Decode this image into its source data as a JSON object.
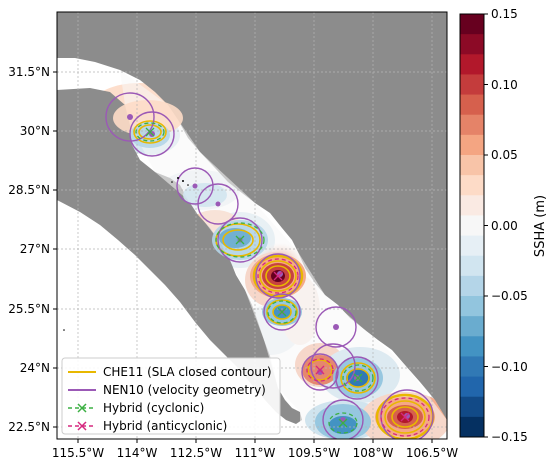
{
  "map": {
    "lat_labels": [
      "31.5°N",
      "30°N",
      "28.5°N",
      "27°N",
      "25.5°N",
      "24°N",
      "22.5°N"
    ],
    "lon_labels": [
      "115.5°W",
      "114°W",
      "112.5°W",
      "111°W",
      "109.5°W",
      "108°W",
      "106.5°W"
    ],
    "land_color": "#8c8c8c",
    "ocean_color": "#ffffff",
    "grid_color": "#b5b5b5"
  },
  "legend": {
    "items": [
      {
        "label": "CHE11 (SLA closed contour)",
        "color": "#e8b800",
        "style": "solid-line"
      },
      {
        "label": "NEN10 (velocity geometry)",
        "color": "#9b59b6",
        "style": "solid-line"
      },
      {
        "label": "Hybrid (cyclonic)",
        "color": "#3cb043",
        "style": "dashed-x"
      },
      {
        "label": "Hybrid (anticyclonic)",
        "color": "#d6287f",
        "style": "dashed-x"
      }
    ]
  },
  "colorbar": {
    "label": "SSHA (m)",
    "tick_labels": [
      "0.15",
      "0.10",
      "0.05",
      "0.00",
      "−0.05",
      "−0.10",
      "−0.15"
    ],
    "range": [
      -0.15,
      0.15
    ],
    "colors_top_to_bottom": [
      "#67001f",
      "#8c0a26",
      "#b2182b",
      "#c43c3c",
      "#d6604d",
      "#e58368",
      "#f4a582",
      "#f8c4a8",
      "#fddbc7",
      "#faeae3",
      "#f7f7f7",
      "#e6eff5",
      "#d1e5f0",
      "#b4d5e8",
      "#92c5de",
      "#6aaccf",
      "#4393c3",
      "#3179b5",
      "#2166ac",
      "#124a87",
      "#053061"
    ]
  }
}
